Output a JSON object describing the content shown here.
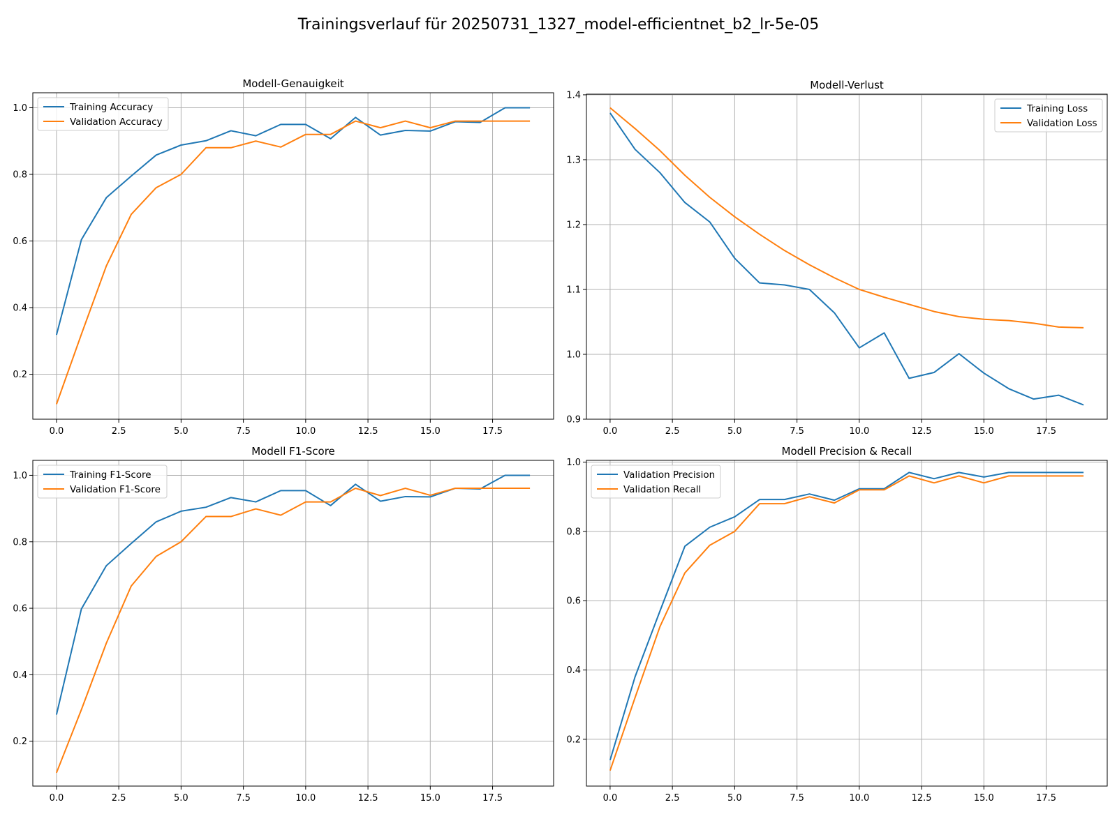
{
  "figure": {
    "suptitle": "Trainingsverlauf für 20250731_1327_model-efficientnet_b2_lr-5e-05"
  },
  "chart_data": [
    {
      "type": "line",
      "title": "Modell-Genauigkeit",
      "x": [
        0,
        1,
        2,
        3,
        4,
        5,
        6,
        7,
        8,
        9,
        10,
        11,
        12,
        13,
        14,
        15,
        16,
        17,
        18,
        19
      ],
      "xlim": [
        -0.95,
        19.95
      ],
      "xticks": [
        0.0,
        2.5,
        5.0,
        7.5,
        10.0,
        12.5,
        15.0,
        17.5
      ],
      "xtick_labels": [
        "0.0",
        "2.5",
        "5.0",
        "7.5",
        "10.0",
        "12.5",
        "15.0",
        "17.5"
      ],
      "ylim": [
        0.065,
        1.045
      ],
      "yticks": [
        0.2,
        0.4,
        0.6,
        0.8,
        1.0
      ],
      "ytick_labels": [
        "0.2",
        "0.4",
        "0.6",
        "0.8",
        "1.0"
      ],
      "grid": true,
      "legend_loc": "upper-left",
      "series": [
        {
          "name": "Training Accuracy",
          "color": "#1f77b4",
          "values": [
            0.318,
            0.604,
            0.73,
            0.795,
            0.858,
            0.888,
            0.901,
            0.931,
            0.916,
            0.95,
            0.95,
            0.907,
            0.971,
            0.918,
            0.932,
            0.93,
            0.958,
            0.956,
            1.0,
            1.0
          ]
        },
        {
          "name": "Validation Accuracy",
          "color": "#ff7f0e",
          "values": [
            0.11,
            0.32,
            0.525,
            0.68,
            0.76,
            0.8,
            0.88,
            0.88,
            0.9,
            0.882,
            0.92,
            0.92,
            0.96,
            0.94,
            0.96,
            0.94,
            0.96,
            0.96,
            0.96,
            0.96
          ]
        }
      ]
    },
    {
      "type": "line",
      "title": "Modell-Verlust",
      "x": [
        0,
        1,
        2,
        3,
        4,
        5,
        6,
        7,
        8,
        9,
        10,
        11,
        12,
        13,
        14,
        15,
        16,
        17,
        18,
        19
      ],
      "xlim": [
        -0.95,
        19.95
      ],
      "xticks": [
        0.0,
        2.5,
        5.0,
        7.5,
        10.0,
        12.5,
        15.0,
        17.5
      ],
      "xtick_labels": [
        "0.0",
        "2.5",
        "5.0",
        "7.5",
        "10.0",
        "12.5",
        "15.0",
        "17.5"
      ],
      "ylim": [
        0.9,
        1.401
      ],
      "yticks": [
        0.9,
        1.0,
        1.1,
        1.2,
        1.3,
        1.4
      ],
      "ytick_labels": [
        "0.9",
        "1.0",
        "1.1",
        "1.2",
        "1.3",
        "1.4"
      ],
      "grid": true,
      "legend_loc": "upper-right",
      "series": [
        {
          "name": "Training Loss",
          "color": "#1f77b4",
          "values": [
            1.372,
            1.316,
            1.28,
            1.234,
            1.204,
            1.148,
            1.11,
            1.107,
            1.1,
            1.064,
            1.01,
            1.033,
            0.963,
            0.972,
            1.001,
            0.971,
            0.947,
            0.931,
            0.937,
            0.922
          ]
        },
        {
          "name": "Validation Loss",
          "color": "#ff7f0e",
          "values": [
            1.38,
            1.348,
            1.314,
            1.276,
            1.242,
            1.212,
            1.185,
            1.16,
            1.138,
            1.118,
            1.1,
            1.088,
            1.077,
            1.066,
            1.058,
            1.054,
            1.052,
            1.048,
            1.042,
            1.041
          ]
        }
      ]
    },
    {
      "type": "line",
      "title": "Modell F1-Score",
      "x": [
        0,
        1,
        2,
        3,
        4,
        5,
        6,
        7,
        8,
        9,
        10,
        11,
        12,
        13,
        14,
        15,
        16,
        17,
        18,
        19
      ],
      "xlim": [
        -0.95,
        19.95
      ],
      "xticks": [
        0.0,
        2.5,
        5.0,
        7.5,
        10.0,
        12.5,
        15.0,
        17.5
      ],
      "xtick_labels": [
        "0.0",
        "2.5",
        "5.0",
        "7.5",
        "10.0",
        "12.5",
        "15.0",
        "17.5"
      ],
      "ylim": [
        0.065,
        1.045
      ],
      "yticks": [
        0.2,
        0.4,
        0.6,
        0.8,
        1.0
      ],
      "ytick_labels": [
        "0.2",
        "0.4",
        "0.6",
        "0.8",
        "1.0"
      ],
      "grid": true,
      "legend_loc": "upper-left",
      "series": [
        {
          "name": "Training F1-Score",
          "color": "#1f77b4",
          "values": [
            0.28,
            0.598,
            0.728,
            0.795,
            0.86,
            0.892,
            0.904,
            0.933,
            0.92,
            0.954,
            0.954,
            0.909,
            0.973,
            0.922,
            0.936,
            0.935,
            0.961,
            0.959,
            1.0,
            1.0
          ]
        },
        {
          "name": "Validation F1-Score",
          "color": "#ff7f0e",
          "values": [
            0.105,
            0.295,
            0.495,
            0.667,
            0.756,
            0.8,
            0.876,
            0.876,
            0.899,
            0.88,
            0.92,
            0.92,
            0.961,
            0.939,
            0.961,
            0.94,
            0.961,
            0.961,
            0.961,
            0.961
          ]
        }
      ]
    },
    {
      "type": "line",
      "title": "Modell Precision & Recall",
      "x": [
        0,
        1,
        2,
        3,
        4,
        5,
        6,
        7,
        8,
        9,
        10,
        11,
        12,
        13,
        14,
        15,
        16,
        17,
        18,
        19
      ],
      "xlim": [
        -0.95,
        19.95
      ],
      "xticks": [
        0.0,
        2.5,
        5.0,
        7.5,
        10.0,
        12.5,
        15.0,
        17.5
      ],
      "xtick_labels": [
        "0.0",
        "2.5",
        "5.0",
        "7.5",
        "10.0",
        "12.5",
        "15.0",
        "17.5"
      ],
      "ylim": [
        0.065,
        1.005
      ],
      "yticks": [
        0.2,
        0.4,
        0.6,
        0.8,
        1.0
      ],
      "ytick_labels": [
        "0.2",
        "0.4",
        "0.6",
        "0.8",
        "1.0"
      ],
      "grid": true,
      "legend_loc": "upper-left",
      "series": [
        {
          "name": "Validation Precision",
          "color": "#1f77b4",
          "values": [
            0.14,
            0.38,
            0.57,
            0.757,
            0.812,
            0.842,
            0.892,
            0.892,
            0.908,
            0.89,
            0.923,
            0.923,
            0.97,
            0.952,
            0.97,
            0.957,
            0.97,
            0.97,
            0.97,
            0.97
          ]
        },
        {
          "name": "Validation Recall",
          "color": "#ff7f0e",
          "values": [
            0.11,
            0.32,
            0.525,
            0.68,
            0.76,
            0.8,
            0.88,
            0.88,
            0.9,
            0.882,
            0.92,
            0.92,
            0.96,
            0.94,
            0.96,
            0.94,
            0.96,
            0.96,
            0.96,
            0.96
          ]
        }
      ]
    }
  ]
}
